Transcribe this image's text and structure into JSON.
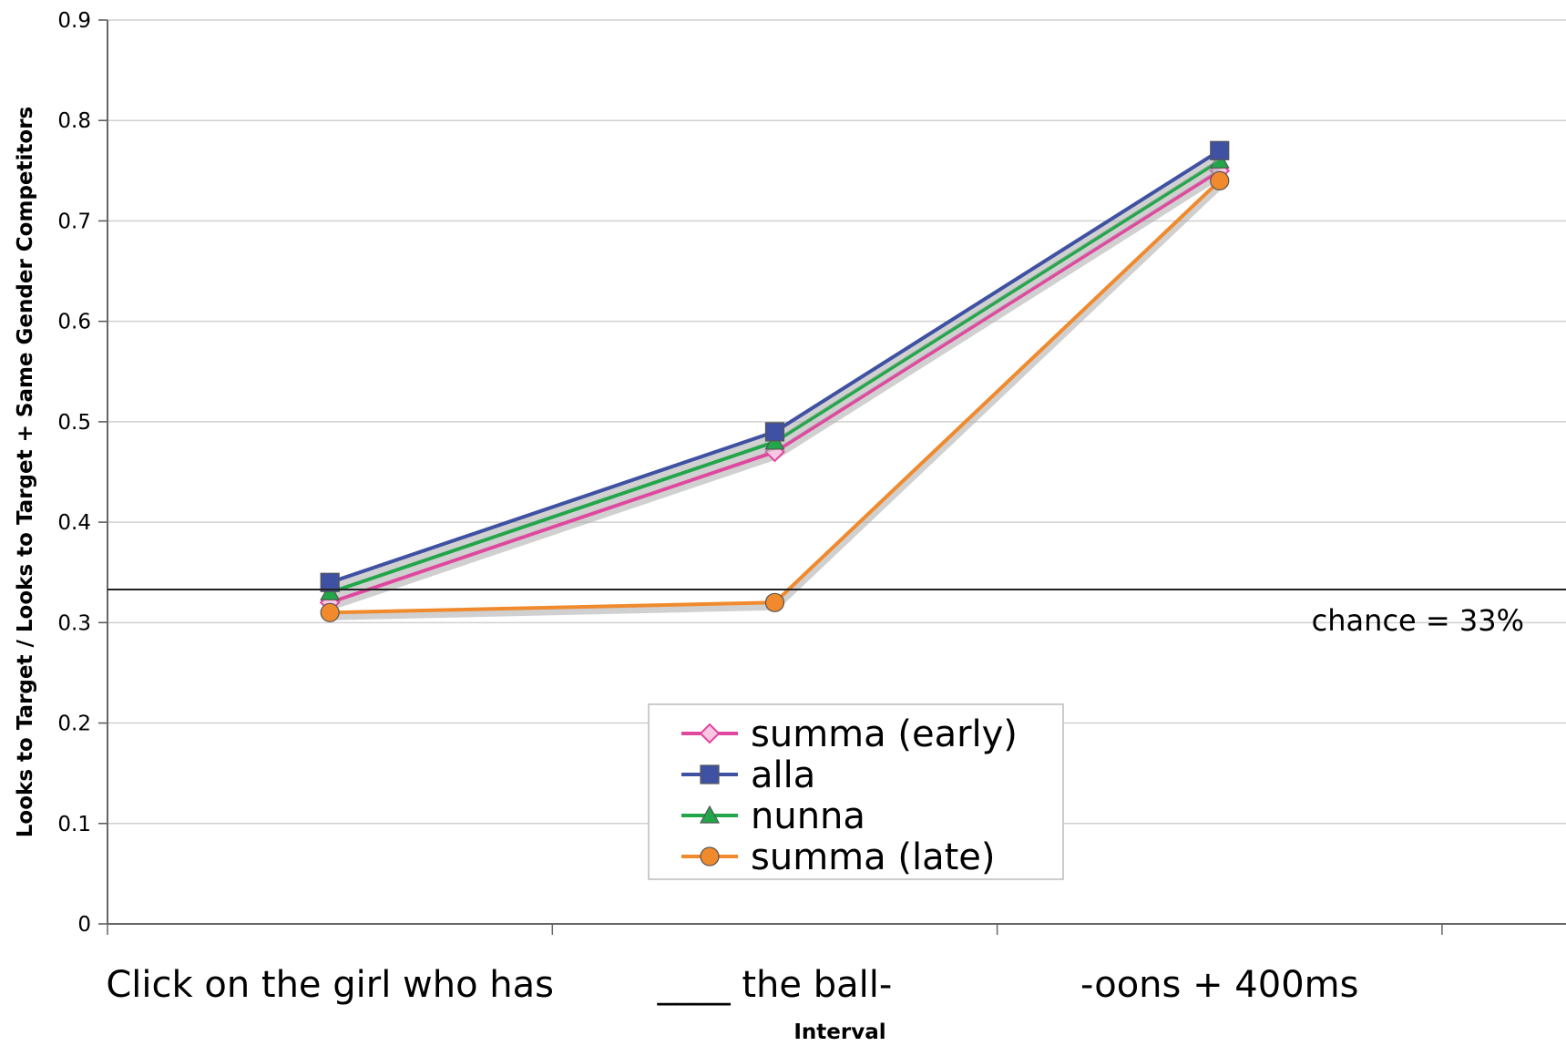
{
  "chart_data": {
    "type": "line",
    "categories": [
      "Click on the girl who has",
      "____ the ball-",
      "-oons + 400ms"
    ],
    "series": [
      {
        "name": "summa (early)",
        "values": [
          0.32,
          0.47,
          0.75
        ],
        "color": "#e0479e",
        "marker": "diamond"
      },
      {
        "name": "alla",
        "values": [
          0.34,
          0.49,
          0.77
        ],
        "color": "#3f51a3",
        "marker": "square"
      },
      {
        "name": "nunna",
        "values": [
          0.33,
          0.48,
          0.76
        ],
        "color": "#22a64a",
        "marker": "triangle"
      },
      {
        "name": "summa (late)",
        "values": [
          0.31,
          0.32,
          0.74
        ],
        "color": "#f08a2c",
        "marker": "circle"
      }
    ],
    "xlabel": "Interval",
    "ylabel": "Looks to Target / Looks to Target + Same Gender Competitors",
    "ylim": [
      0,
      0.9
    ],
    "yticks": [
      "0",
      "0.1",
      "0.2",
      "0.3",
      "0.4",
      "0.5",
      "0.6",
      "0.7",
      "0.8",
      "0.9"
    ],
    "reference_line": {
      "value": 0.333,
      "label": "chance = 33%"
    },
    "grid": true,
    "legend_position": "bottom-center"
  }
}
